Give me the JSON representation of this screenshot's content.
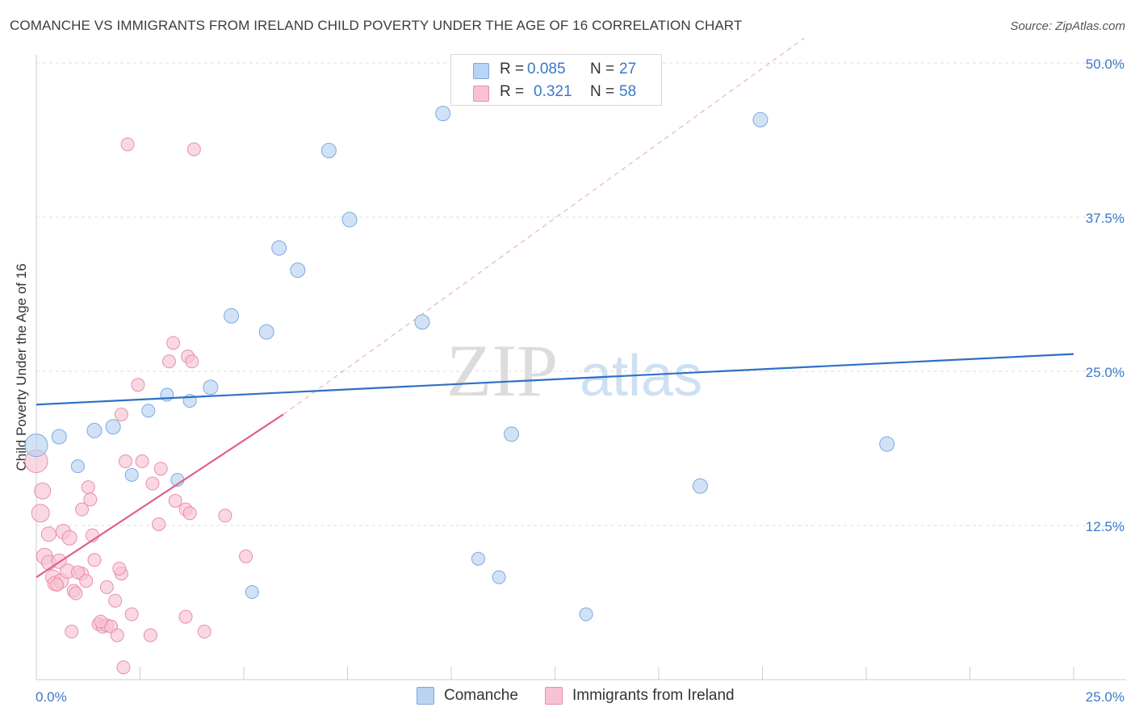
{
  "title": "COMANCHE VS IMMIGRANTS FROM IRELAND CHILD POVERTY UNDER THE AGE OF 16 CORRELATION CHART",
  "source": "Source: ZipAtlas.com",
  "watermark": {
    "zip": "ZIP",
    "atlas": "atlas"
  },
  "colors": {
    "comanche_fill": "#b9d3f2",
    "comanche_stroke": "#7ea8dd",
    "comanche_line": "#2f6fc8",
    "ireland_fill": "#f7c3d2",
    "ireland_stroke": "#e88ea9",
    "ireland_line": "#e0608a",
    "axis_text": "#3a78c8"
  },
  "legend": {
    "rows": [
      {
        "r_label": "R =",
        "r_value": "0.085",
        "n_label": "N =",
        "n_value": "27"
      },
      {
        "r_label": "R =",
        "r_value": "0.321",
        "n_label": "N =",
        "n_value": "58"
      }
    ]
  },
  "bottom_legend": [
    "Comanche",
    "Immigrants from Ireland"
  ],
  "chart_data": {
    "type": "scatter",
    "title": "COMANCHE VS IMMIGRANTS FROM IRELAND CHILD POVERTY UNDER THE AGE OF 16 CORRELATION CHART",
    "xlabel": "",
    "ylabel": "Child Poverty Under the Age of 16",
    "xlim": [
      0,
      25
    ],
    "ylim": [
      0,
      50
    ],
    "x_tick_labels": [
      "0.0%",
      "25.0%"
    ],
    "y_tick_values": [
      12.5,
      25,
      37.5,
      50
    ],
    "y_tick_labels": [
      "12.5%",
      "25.0%",
      "37.5%",
      "50.0%"
    ],
    "series": [
      {
        "name": "Comanche",
        "R": 0.085,
        "N": 27,
        "trend": {
          "x": [
            0,
            25
          ],
          "y": [
            22.3,
            26.4
          ],
          "style": "solid"
        },
        "points": [
          [
            0.0,
            19.0,
            14
          ],
          [
            0.55,
            19.7,
            9
          ],
          [
            1.0,
            17.3,
            8
          ],
          [
            1.4,
            20.2,
            9
          ],
          [
            1.85,
            20.5,
            9
          ],
          [
            2.3,
            16.6,
            8
          ],
          [
            2.7,
            21.8,
            8
          ],
          [
            3.15,
            23.1,
            8
          ],
          [
            3.4,
            16.2,
            8
          ],
          [
            3.7,
            22.6,
            8
          ],
          [
            4.2,
            23.7,
            9
          ],
          [
            4.7,
            29.5,
            9
          ],
          [
            5.2,
            7.1,
            8
          ],
          [
            5.55,
            28.2,
            9
          ],
          [
            5.85,
            35.0,
            9
          ],
          [
            6.3,
            33.2,
            9
          ],
          [
            7.05,
            42.9,
            9
          ],
          [
            7.55,
            37.3,
            9
          ],
          [
            9.3,
            29.0,
            9
          ],
          [
            9.8,
            45.9,
            9
          ],
          [
            10.65,
            9.8,
            8
          ],
          [
            11.15,
            8.3,
            8
          ],
          [
            11.45,
            19.9,
            9
          ],
          [
            13.25,
            5.3,
            8
          ],
          [
            16.0,
            15.7,
            9
          ],
          [
            17.45,
            45.4,
            9
          ],
          [
            20.5,
            19.1,
            9
          ]
        ]
      },
      {
        "name": "Immigrants from Ireland",
        "R": 0.321,
        "N": 58,
        "trend": {
          "x": [
            0,
            5.95
          ],
          "y": [
            8.3,
            21.5
          ],
          "style": "solid"
        },
        "trend_extension": {
          "x": [
            5.95,
            18.5
          ],
          "y": [
            21.5,
            52.0
          ],
          "style": "dashed"
        },
        "points": [
          [
            0.0,
            17.7,
            14
          ],
          [
            0.1,
            13.5,
            11
          ],
          [
            0.15,
            15.3,
            10
          ],
          [
            0.2,
            10.0,
            10
          ],
          [
            0.3,
            11.8,
            9
          ],
          [
            0.3,
            9.5,
            9
          ],
          [
            0.4,
            8.3,
            9
          ],
          [
            0.45,
            7.8,
            9
          ],
          [
            0.55,
            9.6,
            9
          ],
          [
            0.6,
            8.0,
            9
          ],
          [
            0.65,
            12.0,
            9
          ],
          [
            0.75,
            8.8,
            9
          ],
          [
            0.8,
            11.5,
            9
          ],
          [
            0.85,
            3.9,
            8
          ],
          [
            0.9,
            7.2,
            8
          ],
          [
            0.95,
            7.0,
            8
          ],
          [
            1.1,
            13.8,
            8
          ],
          [
            1.1,
            8.6,
            8
          ],
          [
            1.25,
            15.6,
            8
          ],
          [
            1.3,
            14.6,
            8
          ],
          [
            1.35,
            11.7,
            8
          ],
          [
            1.4,
            9.7,
            8
          ],
          [
            1.5,
            4.5,
            8
          ],
          [
            1.6,
            4.3,
            8
          ],
          [
            1.7,
            7.5,
            8
          ],
          [
            1.7,
            4.4,
            8
          ],
          [
            1.8,
            4.3,
            8
          ],
          [
            1.9,
            6.4,
            8
          ],
          [
            1.95,
            3.6,
            8
          ],
          [
            2.05,
            8.6,
            8
          ],
          [
            2.05,
            21.5,
            8
          ],
          [
            2.1,
            1.0,
            8
          ],
          [
            2.15,
            17.7,
            8
          ],
          [
            2.2,
            43.4,
            8
          ],
          [
            2.3,
            5.3,
            8
          ],
          [
            2.45,
            23.9,
            8
          ],
          [
            2.55,
            17.7,
            8
          ],
          [
            2.75,
            3.6,
            8
          ],
          [
            2.8,
            15.9,
            8
          ],
          [
            2.95,
            12.6,
            8
          ],
          [
            3.0,
            17.1,
            8
          ],
          [
            3.2,
            25.8,
            8
          ],
          [
            3.3,
            27.3,
            8
          ],
          [
            3.35,
            14.5,
            8
          ],
          [
            3.6,
            13.8,
            8
          ],
          [
            3.6,
            5.1,
            8
          ],
          [
            3.65,
            26.2,
            8
          ],
          [
            3.7,
            13.5,
            8
          ],
          [
            3.75,
            25.8,
            8
          ],
          [
            3.8,
            43.0,
            8
          ],
          [
            4.05,
            3.9,
            8
          ],
          [
            4.55,
            13.3,
            8
          ],
          [
            5.05,
            10.0,
            8
          ],
          [
            1.0,
            8.7,
            8
          ],
          [
            0.5,
            7.7,
            8
          ],
          [
            1.55,
            4.7,
            8
          ],
          [
            2.0,
            9.0,
            8
          ],
          [
            1.2,
            8.0,
            8
          ]
        ]
      }
    ]
  }
}
